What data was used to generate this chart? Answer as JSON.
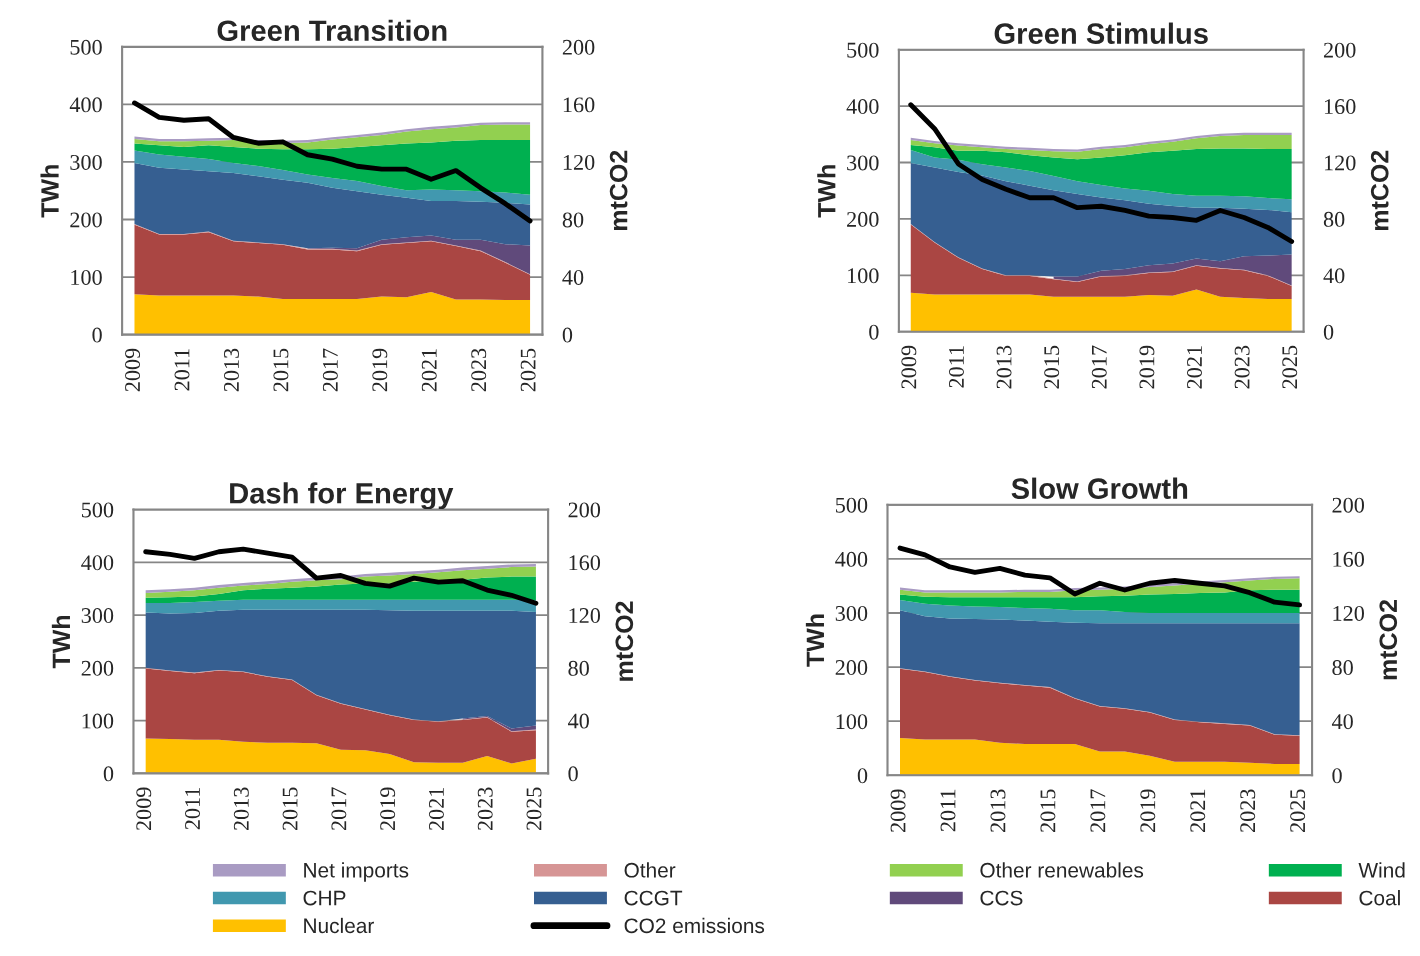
{
  "chart_data": [
    {
      "type": "area",
      "stacked": true,
      "title": "Green Transition",
      "ylabel": "TWh",
      "y2label": "mtCO2",
      "legend": "bottom",
      "grid": "y",
      "x": [
        2009,
        2010,
        2011,
        2012,
        2013,
        2014,
        2015,
        2016,
        2017,
        2018,
        2019,
        2020,
        2021,
        2022,
        2023,
        2024,
        2025
      ],
      "xlim": [
        2008.5,
        2025.5
      ],
      "xticks": [
        2009,
        2011,
        2013,
        2015,
        2017,
        2019,
        2021,
        2023,
        2025
      ],
      "ylim": [
        0,
        500
      ],
      "yticks": [
        0,
        100,
        200,
        300,
        400,
        500
      ],
      "y2lim": [
        0,
        200
      ],
      "y2ticks": [
        0,
        40,
        80,
        120,
        160,
        200
      ],
      "series": [
        {
          "name": "Nuclear",
          "color": "#ffc000",
          "values": [
            70,
            68,
            68,
            68,
            68,
            66,
            62,
            62,
            62,
            62,
            66,
            65,
            74,
            61,
            61,
            60,
            60
          ]
        },
        {
          "name": "Coal",
          "color": "#aa4643",
          "values": [
            121,
            106,
            106,
            110,
            94,
            93,
            94,
            86,
            86,
            83,
            90,
            94,
            88,
            93,
            84,
            65,
            44
          ]
        },
        {
          "name": "Other",
          "color": "#d69595",
          "values": [
            1,
            1,
            1,
            1,
            1,
            1,
            1,
            1,
            1,
            1,
            1,
            1,
            1,
            1,
            1,
            1,
            1
          ]
        },
        {
          "name": "CCS",
          "color": "#604a7b",
          "values": [
            null,
            null,
            null,
            null,
            null,
            null,
            null,
            1,
            2,
            4,
            8,
            9,
            9,
            10,
            19,
            31,
            50
          ]
        },
        {
          "name": "CCGT",
          "color": "#365f91",
          "values": [
            106,
            115,
            112,
            105,
            118,
            115,
            112,
            114,
            104,
            99,
            78,
            69,
            60,
            67,
            66,
            72,
            71
          ]
        },
        {
          "name": "CHP",
          "color": "#4198af",
          "values": [
            22,
            23,
            22,
            21,
            17,
            18,
            17,
            14,
            17,
            18,
            15,
            13,
            20,
            19,
            18,
            18,
            17
          ]
        },
        {
          "name": "Wind",
          "color": "#00b050",
          "values": [
            12,
            16,
            17,
            24,
            28,
            30,
            36,
            44,
            51,
            59,
            71,
            81,
            82,
            86,
            89,
            91,
            95
          ]
        },
        {
          "name": "Other renewables",
          "color": "#92d050",
          "values": [
            8,
            7,
            10,
            8,
            12,
            11,
            11,
            12,
            16,
            17,
            18,
            21,
            23,
            23,
            26,
            27,
            27
          ]
        },
        {
          "name": "Net imports",
          "color": "#a99bc3",
          "values": [
            4,
            4,
            4,
            4,
            4,
            4,
            4,
            4,
            4,
            4,
            4,
            4,
            4,
            4,
            4,
            4,
            4
          ]
        },
        {
          "name": "CO2 emissions",
          "type": "line",
          "axis": "y2",
          "color": "#000000",
          "values": [
            161,
            151,
            149,
            150,
            137,
            133,
            134,
            125,
            122,
            117,
            115,
            115,
            108,
            114,
            102,
            91,
            79
          ]
        }
      ]
    },
    {
      "type": "area",
      "stacked": true,
      "title": "Green Stimulus",
      "ylabel": "TWh",
      "y2label": "mtCO2",
      "legend": "bottom",
      "grid": "y",
      "x": [
        2009,
        2010,
        2011,
        2012,
        2013,
        2014,
        2015,
        2016,
        2017,
        2018,
        2019,
        2020,
        2021,
        2022,
        2023,
        2024,
        2025
      ],
      "xlim": [
        2008.5,
        2025.5
      ],
      "xticks": [
        2009,
        2011,
        2013,
        2015,
        2017,
        2019,
        2021,
        2023,
        2025
      ],
      "ylim": [
        0,
        500
      ],
      "yticks": [
        0,
        100,
        200,
        300,
        400,
        500
      ],
      "y2lim": [
        0,
        200
      ],
      "y2ticks": [
        0,
        40,
        80,
        120,
        160,
        200
      ],
      "series": [
        {
          "name": "Nuclear",
          "color": "#ffc000",
          "values": [
            69,
            66,
            66,
            66,
            66,
            66,
            62,
            62,
            62,
            62,
            65,
            64,
            75,
            62,
            60,
            58,
            58
          ]
        },
        {
          "name": "Coal",
          "color": "#aa4643",
          "values": [
            121,
            92,
            65,
            45,
            33,
            33,
            31,
            26,
            36,
            37,
            39,
            42,
            42,
            50,
            49,
            41,
            23
          ]
        },
        {
          "name": "Other",
          "color": "#d69595",
          "values": [
            1,
            1,
            1,
            1,
            1,
            1,
            1,
            1,
            1,
            1,
            1,
            1,
            1,
            1,
            1,
            1,
            1
          ]
        },
        {
          "name": "CCS",
          "color": "#604a7b",
          "values": [
            null,
            null,
            null,
            null,
            null,
            null,
            4,
            9,
            9,
            11,
            13,
            14,
            12,
            12,
            24,
            35,
            55
          ]
        },
        {
          "name": "CCGT",
          "color": "#365f91",
          "values": [
            108,
            132,
            151,
            165,
            167,
            159,
            153,
            146,
            130,
            122,
            109,
            102,
            90,
            95,
            84,
            81,
            75
          ]
        },
        {
          "name": "CHP",
          "color": "#4198af",
          "values": [
            23,
            18,
            22,
            20,
            24,
            26,
            25,
            23,
            22,
            21,
            23,
            21,
            21,
            21,
            22,
            21,
            23
          ]
        },
        {
          "name": "Wind",
          "color": "#00b050",
          "values": [
            9,
            18,
            16,
            24,
            27,
            28,
            33,
            39,
            49,
            59,
            68,
            77,
            83,
            84,
            85,
            87,
            89
          ]
        },
        {
          "name": "Other renewables",
          "color": "#92d050",
          "values": [
            9,
            7,
            9,
            6,
            6,
            9,
            11,
            13,
            15,
            14,
            15,
            16,
            19,
            22,
            24,
            25,
            25
          ]
        },
        {
          "name": "Net imports",
          "color": "#a99bc3",
          "values": [
            4,
            4,
            4,
            4,
            4,
            4,
            4,
            4,
            4,
            4,
            4,
            4,
            4,
            4,
            4,
            4,
            4
          ]
        },
        {
          "name": "CO2 emissions",
          "type": "line",
          "axis": "y2",
          "color": "#000000",
          "values": [
            161,
            144,
            119,
            108,
            101,
            95,
            95,
            88,
            89,
            86,
            82,
            81,
            79,
            86,
            81,
            74,
            64
          ]
        }
      ]
    },
    {
      "type": "area",
      "stacked": true,
      "title": "Dash for Energy",
      "ylabel": "TWh",
      "y2label": "mtCO2",
      "legend": "bottom",
      "grid": "y",
      "x": [
        2009,
        2010,
        2011,
        2012,
        2013,
        2014,
        2015,
        2016,
        2017,
        2018,
        2019,
        2020,
        2021,
        2022,
        2023,
        2024,
        2025
      ],
      "xlim": [
        2008.5,
        2025.5
      ],
      "xticks": [
        2009,
        2011,
        2013,
        2015,
        2017,
        2019,
        2021,
        2023,
        2025
      ],
      "ylim": [
        0,
        500
      ],
      "yticks": [
        0,
        100,
        200,
        300,
        400,
        500
      ],
      "y2lim": [
        0,
        200
      ],
      "y2ticks": [
        0,
        40,
        80,
        120,
        160,
        200
      ],
      "series": [
        {
          "name": "Nuclear",
          "color": "#ffc000",
          "values": [
            66,
            65,
            64,
            64,
            60,
            58,
            58,
            57,
            45,
            44,
            37,
            21,
            20,
            20,
            33,
            19,
            28
          ]
        },
        {
          "name": "Coal",
          "color": "#aa4643",
          "values": [
            133,
            129,
            126,
            131,
            132,
            125,
            119,
            91,
            87,
            77,
            73,
            80,
            78,
            81,
            73,
            60,
            54
          ]
        },
        {
          "name": "Other",
          "color": "#d69595",
          "values": [
            1,
            1,
            1,
            1,
            1,
            1,
            1,
            1,
            1,
            1,
            1,
            1,
            1,
            1,
            1,
            1,
            1
          ]
        },
        {
          "name": "CCS",
          "color": "#604a7b",
          "values": [
            null,
            null,
            null,
            null,
            null,
            null,
            null,
            null,
            null,
            null,
            null,
            null,
            null,
            2,
            2,
            5,
            8
          ]
        },
        {
          "name": "CCGT",
          "color": "#365f91",
          "values": [
            105,
            108,
            113,
            112,
            117,
            126,
            132,
            161,
            177,
            188,
            198,
            206,
            209,
            204,
            199,
            223,
            215
          ]
        },
        {
          "name": "CHP",
          "color": "#4198af",
          "values": [
            18,
            20,
            21,
            19,
            19,
            19,
            19,
            19,
            19,
            19,
            20,
            21,
            21,
            21,
            21,
            21,
            22
          ]
        },
        {
          "name": "Wind",
          "color": "#00b050",
          "values": [
            10,
            11,
            10,
            13,
            18,
            21,
            23,
            25,
            29,
            31,
            31,
            34,
            37,
            38,
            42,
            44,
            45
          ]
        },
        {
          "name": "Other renewables",
          "color": "#92d050",
          "values": [
            9,
            10,
            12,
            12,
            9,
            9,
            11,
            12,
            10,
            13,
            15,
            15,
            15,
            18,
            17,
            18,
            19
          ]
        },
        {
          "name": "Net imports",
          "color": "#a99bc3",
          "values": [
            5,
            5,
            5,
            5,
            5,
            5,
            5,
            5,
            5,
            5,
            5,
            5,
            5,
            5,
            5,
            5,
            5
          ]
        },
        {
          "name": "CO2 emissions",
          "type": "line",
          "axis": "y2",
          "color": "#000000",
          "values": [
            168,
            166,
            163,
            168,
            170,
            167,
            164,
            148,
            150,
            144,
            142,
            148,
            145,
            146,
            139,
            135,
            129
          ]
        }
      ]
    },
    {
      "type": "area",
      "stacked": true,
      "title": "Slow Growth",
      "ylabel": "TWh",
      "y2label": "mtCO2",
      "legend": "bottom",
      "grid": "y",
      "x": [
        2009,
        2010,
        2011,
        2012,
        2013,
        2014,
        2015,
        2016,
        2017,
        2018,
        2019,
        2020,
        2021,
        2022,
        2023,
        2024,
        2025
      ],
      "xlim": [
        2008.5,
        2025.5
      ],
      "xticks": [
        2009,
        2011,
        2013,
        2015,
        2017,
        2019,
        2021,
        2023,
        2025
      ],
      "ylim": [
        0,
        500
      ],
      "yticks": [
        0,
        100,
        200,
        300,
        400,
        500
      ],
      "y2lim": [
        0,
        200
      ],
      "y2ticks": [
        0,
        40,
        80,
        120,
        160,
        200
      ],
      "series": [
        {
          "name": "Nuclear",
          "color": "#ffc000",
          "values": [
            69,
            66,
            66,
            66,
            60,
            58,
            58,
            58,
            44,
            44,
            36,
            25,
            25,
            25,
            23,
            21,
            21
          ]
        },
        {
          "name": "Coal",
          "color": "#aa4643",
          "values": [
            128,
            125,
            116,
            109,
            110,
            108,
            104,
            84,
            83,
            79,
            80,
            77,
            73,
            70,
            69,
            54,
            52
          ]
        },
        {
          "name": "Other",
          "color": "#d69595",
          "values": [
            1,
            1,
            1,
            1,
            1,
            1,
            1,
            1,
            1,
            1,
            1,
            1,
            1,
            1,
            1,
            1,
            1
          ]
        },
        {
          "name": "CCGT",
          "color": "#365f91",
          "values": [
            107,
            102,
            107,
            113,
            117,
            119,
            121,
            139,
            153,
            157,
            164,
            178,
            182,
            185,
            188,
            205,
            207
          ]
        },
        {
          "name": "CHP",
          "color": "#4198af",
          "values": [
            19,
            23,
            24,
            23,
            23,
            23,
            24,
            23,
            24,
            21,
            19,
            19,
            19,
            19,
            19,
            19,
            19
          ]
        },
        {
          "name": "Wind",
          "color": "#00b050",
          "values": [
            10,
            13,
            15,
            17,
            18,
            20,
            21,
            24,
            26,
            30,
            34,
            35,
            37,
            38,
            42,
            43,
            43
          ]
        },
        {
          "name": "Other renewables",
          "color": "#92d050",
          "values": [
            9,
            8,
            9,
            9,
            9,
            10,
            10,
            13,
            12,
            13,
            14,
            16,
            17,
            19,
            18,
            20,
            21
          ]
        },
        {
          "name": "Net imports",
          "color": "#a99bc3",
          "values": [
            4,
            4,
            4,
            4,
            4,
            4,
            4,
            4,
            4,
            4,
            4,
            4,
            4,
            4,
            4,
            4,
            4
          ]
        },
        {
          "name": "CO2 emissions",
          "type": "line",
          "axis": "y2",
          "color": "#000000",
          "values": [
            168,
            163,
            154,
            150,
            153,
            148,
            146,
            134,
            142,
            137,
            142,
            144,
            142,
            140,
            135,
            128,
            126
          ]
        }
      ]
    }
  ]
}
